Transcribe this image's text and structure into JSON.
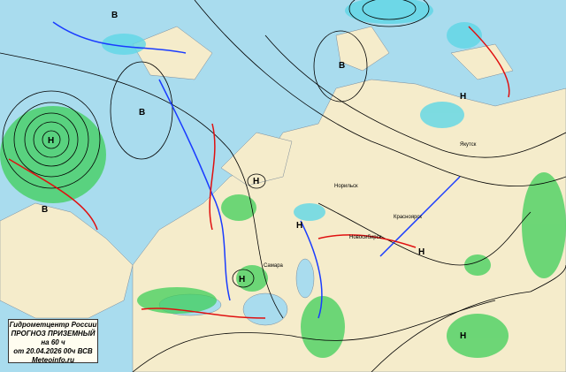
{
  "legend": {
    "org": "Гидрометцентр России",
    "title": "ПРОГНОЗ ПРИЗЕМНЫЙ",
    "lead": "на 60 ч",
    "issued": "от 20.04.2026 00ч ВСВ",
    "site": "Meteoinfo.ru"
  },
  "colors": {
    "sea": "#a9dcee",
    "land": "#f5eccb",
    "precip": "#3fcf5a",
    "snow": "#5fd7e6",
    "cold_front": "#1a3cff",
    "warm_front": "#e01010",
    "isobar": "#000000"
  },
  "pressure_centers": [
    {
      "label": "Н"
    },
    {
      "label": "В"
    },
    {
      "label": "Н"
    },
    {
      "label": "В"
    },
    {
      "label": "Н"
    },
    {
      "label": "В"
    },
    {
      "label": "Н"
    },
    {
      "label": "Н"
    },
    {
      "label": "В"
    },
    {
      "label": "Н"
    },
    {
      "label": "Н"
    }
  ],
  "cities": [
    "Норильск",
    "Красноярск",
    "Новосибирск",
    "Самара",
    "Якутск"
  ]
}
